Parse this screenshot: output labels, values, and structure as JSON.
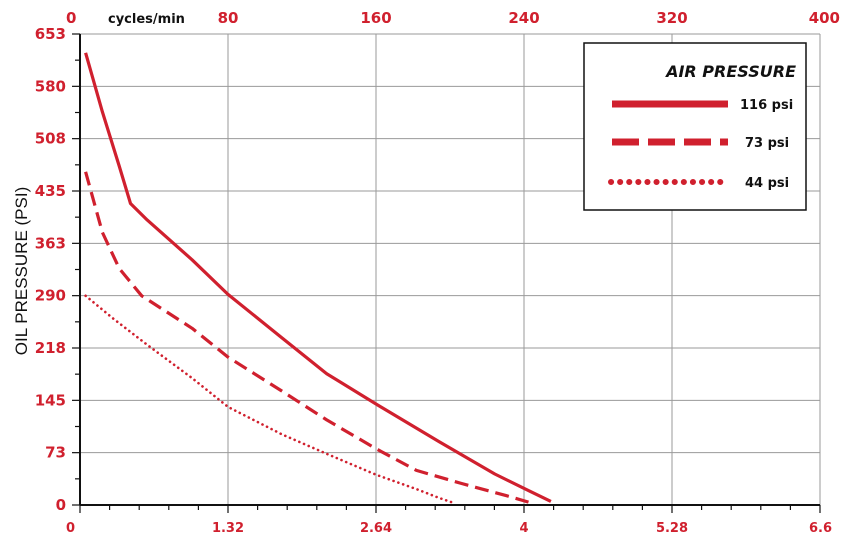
{
  "chart_data": {
    "type": "line",
    "ylabel": "OIL PRESSURE (PSI)",
    "xlim": [
      0,
      6.6
    ],
    "ylim": [
      0,
      653
    ],
    "x_ticks": [
      "0",
      "1.32",
      "2.64",
      "4",
      "5.28",
      "6.6"
    ],
    "y_ticks": [
      "0",
      "73",
      "145",
      "218",
      "290",
      "363",
      "435",
      "508",
      "580",
      "653"
    ],
    "top_axis": {
      "unit_label": "cycles/min",
      "range": [
        0,
        400
      ],
      "ticks": [
        "0",
        "80",
        "160",
        "240",
        "320",
        "400"
      ]
    },
    "legend": {
      "title": "AIR PRESSURE",
      "placement": "top-right"
    },
    "grid": true,
    "series": [
      {
        "name": "116 psi",
        "style": "solid",
        "points": [
          [
            0.05,
            627
          ],
          [
            0.2,
            545
          ],
          [
            0.35,
            470
          ],
          [
            0.45,
            418
          ],
          [
            0.6,
            395
          ],
          [
            1.0,
            340
          ],
          [
            1.32,
            292
          ],
          [
            1.8,
            232
          ],
          [
            2.2,
            182
          ],
          [
            2.64,
            140
          ],
          [
            3.2,
            88
          ],
          [
            3.7,
            43
          ],
          [
            4.0,
            20
          ],
          [
            4.2,
            5
          ]
        ]
      },
      {
        "name": "73 psi",
        "style": "dashed",
        "points": [
          [
            0.05,
            462
          ],
          [
            0.2,
            378
          ],
          [
            0.35,
            328
          ],
          [
            0.55,
            290
          ],
          [
            1.0,
            245
          ],
          [
            1.32,
            205
          ],
          [
            1.8,
            158
          ],
          [
            2.2,
            118
          ],
          [
            2.64,
            78
          ],
          [
            3.0,
            48
          ],
          [
            3.4,
            30
          ],
          [
            3.8,
            13
          ],
          [
            4.0,
            4
          ]
        ]
      },
      {
        "name": "44 psi",
        "style": "dotted",
        "points": [
          [
            0.05,
            290
          ],
          [
            0.3,
            258
          ],
          [
            0.6,
            222
          ],
          [
            1.0,
            176
          ],
          [
            1.32,
            136
          ],
          [
            1.8,
            98
          ],
          [
            2.2,
            71
          ],
          [
            2.64,
            42
          ],
          [
            3.0,
            22
          ],
          [
            3.2,
            10
          ],
          [
            3.35,
            2
          ]
        ]
      }
    ],
    "colors": {
      "accent": "#d0202e",
      "grid": "#9a9a9a",
      "axis": "#111111",
      "text": "#111111"
    }
  }
}
